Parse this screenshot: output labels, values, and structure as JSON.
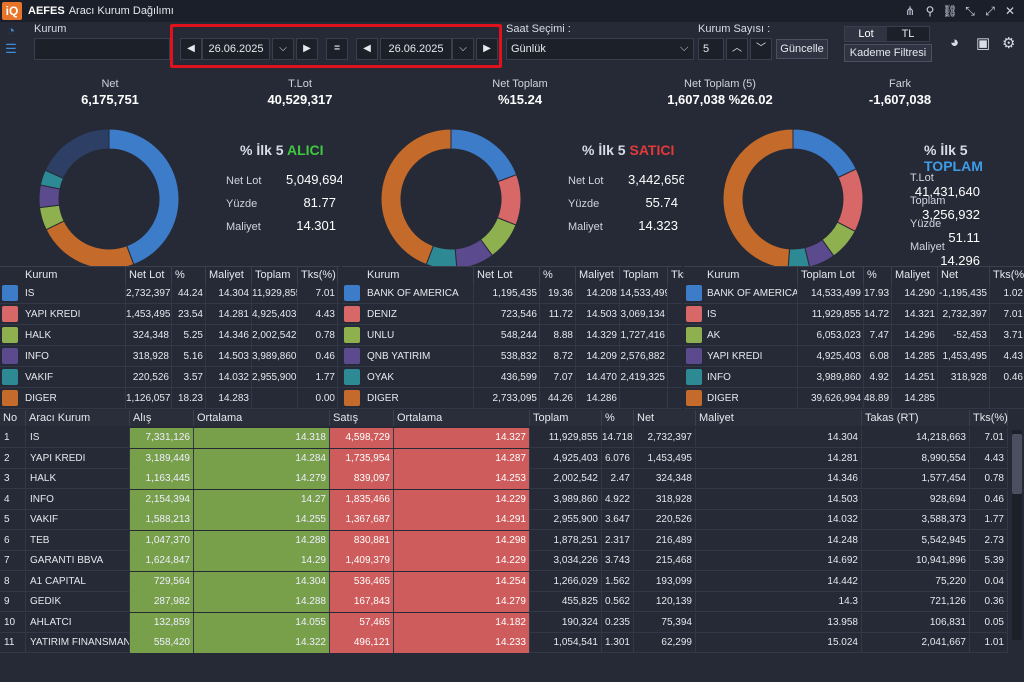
{
  "title": {
    "symbol": "AEFES",
    "text": "Aracı Kurum Dağılımı"
  },
  "window_icons": [
    "share-icon",
    "pin-icon",
    "chain-icon",
    "compress-icon",
    "expand-icon",
    "close-icon"
  ],
  "toolbar": {
    "kurum_label": "Kurum",
    "kurum_value": "",
    "date1": "26.06.2025",
    "date2": "26.06.2025",
    "equals": "=",
    "saat_label": "Saat Seçimi :",
    "saat_value": "Günlük",
    "kurum_sayisi_label": "Kurum Sayısı :",
    "kurum_sayisi_value": "5",
    "guncelle": "Güncelle",
    "lot": "Lot",
    "tl": "TL",
    "kademe": "Kademe Filtresi"
  },
  "stats": [
    {
      "label": "Net",
      "value": "6,175,751"
    },
    {
      "label": "T.Lot",
      "value": "40,529,317"
    },
    {
      "label": "Net Toplam",
      "value": "%15.24"
    },
    {
      "label": "Net Toplam  (5)",
      "value": "1,607,038  %26.02"
    },
    {
      "label": "Fark",
      "value": "-1,607,038"
    }
  ],
  "panels": [
    {
      "prefix": "% İlk 5",
      "word": "ALICI",
      "word_color": "#3fc93f",
      "rows": [
        {
          "k": "Net Lot",
          "v": "5,049,694"
        },
        {
          "k": "Yüzde",
          "v": "81.77"
        },
        {
          "k": "Maliyet",
          "v": "14.301"
        }
      ],
      "slices": [
        {
          "v": 44.24,
          "c": "#3d7cc9"
        },
        {
          "v": 23.54,
          "c": "#c46a2a"
        },
        {
          "v": 5.25,
          "c": "#8fb04e"
        },
        {
          "v": 5.16,
          "c": "#5b4a8e"
        },
        {
          "v": 3.57,
          "c": "#2d8a94"
        },
        {
          "v": 18.23,
          "c": "#2e3f66"
        }
      ]
    },
    {
      "prefix": "% İlk 5",
      "word": "SATICI",
      "word_color": "#e23a3a",
      "rows": [
        {
          "k": "Net Lot",
          "v": "3,442,656"
        },
        {
          "k": "Yüzde",
          "v": "55.74"
        },
        {
          "k": "Maliyet",
          "v": "14.323"
        }
      ],
      "slices": [
        {
          "v": 19.36,
          "c": "#3d7cc9"
        },
        {
          "v": 11.72,
          "c": "#d86868"
        },
        {
          "v": 8.88,
          "c": "#8fb04e"
        },
        {
          "v": 8.72,
          "c": "#5b4a8e"
        },
        {
          "v": 7.07,
          "c": "#2d8a94"
        },
        {
          "v": 44.26,
          "c": "#c46a2a"
        }
      ]
    },
    {
      "prefix": "% İlk 5",
      "word": "TOPLAM",
      "word_color": "#3d9de8",
      "rows": [
        {
          "k": "T.Lot",
          "v": "41,431,640"
        },
        {
          "k": "Toplam",
          "v": "3,256,932"
        },
        {
          "k": "Yüzde",
          "v": "51.11"
        },
        {
          "k": "Maliyet",
          "v": "14.296"
        }
      ],
      "slices": [
        {
          "v": 17.93,
          "c": "#3d7cc9"
        },
        {
          "v": 14.72,
          "c": "#d86868"
        },
        {
          "v": 7.47,
          "c": "#8fb04e"
        },
        {
          "v": 6.08,
          "c": "#5b4a8e"
        },
        {
          "v": 4.92,
          "c": "#2d8a94"
        },
        {
          "v": 48.89,
          "c": "#c46a2a"
        }
      ]
    }
  ],
  "buy_table": {
    "headers": [
      "Kurum",
      "Net Lot",
      "%",
      "Maliyet",
      "Toplam",
      "Tks(%)"
    ],
    "rows": [
      {
        "c": "#3d7cc9",
        "cells": [
          "IS",
          "2,732,397",
          "44.24",
          "14.304",
          "11,929,855",
          "7.01"
        ]
      },
      {
        "c": "#d86868",
        "cells": [
          "YAPI KREDI",
          "1,453,495",
          "23.54",
          "14.281",
          "4,925,403",
          "4.43"
        ]
      },
      {
        "c": "#8fb04e",
        "cells": [
          "HALK",
          "324,348",
          "5.25",
          "14.346",
          "2,002,542",
          "0.78"
        ]
      },
      {
        "c": "#5b4a8e",
        "cells": [
          "INFO",
          "318,928",
          "5.16",
          "14.503",
          "3,989,860",
          "0.46"
        ]
      },
      {
        "c": "#2d8a94",
        "cells": [
          "VAKIF",
          "220,526",
          "3.57",
          "14.032",
          "2,955,900",
          "1.77"
        ]
      },
      {
        "c": "#c46a2a",
        "cells": [
          "DIGER",
          "1,126,057",
          "18.23",
          "14.283",
          "",
          "0.00"
        ]
      }
    ]
  },
  "sell_table": {
    "headers": [
      "Kurum",
      "Net Lot",
      "%",
      "Maliyet",
      "Toplam",
      "Tks(%)"
    ],
    "rows": [
      {
        "c": "#3d7cc9",
        "cells": [
          "BANK OF AMERICA",
          "1,195,435",
          "19.36",
          "14.208",
          "14,533,499",
          "1.02"
        ]
      },
      {
        "c": "#d86868",
        "cells": [
          "DENIZ",
          "723,546",
          "11.72",
          "14.503",
          "3,069,134",
          "1.52"
        ]
      },
      {
        "c": "#8fb04e",
        "cells": [
          "UNLU",
          "548,244",
          "8.88",
          "14.329",
          "1,727,416",
          "-0.01"
        ]
      },
      {
        "c": "#5b4a8e",
        "cells": [
          "QNB YATIRIM",
          "538,832",
          "8.72",
          "14.209",
          "2,576,882",
          "1.84"
        ]
      },
      {
        "c": "#2d8a94",
        "cells": [
          "OYAK",
          "436,599",
          "7.07",
          "14.470",
          "2,419,325",
          "0.42"
        ]
      },
      {
        "c": "#c46a2a",
        "cells": [
          "DIGER",
          "2,733,095",
          "44.26",
          "14.286",
          "",
          "0.00"
        ]
      }
    ]
  },
  "total_table": {
    "headers": [
      "Kurum",
      "Toplam Lot",
      "%",
      "Maliyet",
      "Net",
      "Tks(%)"
    ],
    "rows": [
      {
        "c": "#3d7cc9",
        "cells": [
          "BANK OF AMERICA",
          "14,533,499",
          "17.93",
          "14.290",
          "-1,195,435",
          "1.02"
        ]
      },
      {
        "c": "#d86868",
        "cells": [
          "IS",
          "11,929,855",
          "14.72",
          "14.321",
          "2,732,397",
          "7.01"
        ]
      },
      {
        "c": "#8fb04e",
        "cells": [
          "AK",
          "6,053,023",
          "7.47",
          "14.296",
          "-52,453",
          "3.71"
        ]
      },
      {
        "c": "#5b4a8e",
        "cells": [
          "YAPI KREDI",
          "4,925,403",
          "6.08",
          "14.285",
          "1,453,495",
          "4.43"
        ]
      },
      {
        "c": "#2d8a94",
        "cells": [
          "INFO",
          "3,989,860",
          "4.92",
          "14.251",
          "318,928",
          "0.46"
        ]
      },
      {
        "c": "#c46a2a",
        "cells": [
          "DIGER",
          "39,626,994",
          "48.89",
          "14.285",
          "",
          ""
        ]
      }
    ]
  },
  "main_grid": {
    "headers": [
      "No",
      "Aracı Kurum",
      "Alış",
      "Ortalama",
      "Satış",
      "Ortalama",
      "Toplam",
      "%",
      "Net",
      "Maliyet",
      "Takas (RT)",
      "Tks(%)"
    ],
    "rows": [
      [
        "1",
        "IS",
        "7,331,126",
        "14.318",
        "4,598,729",
        "14.327",
        "11,929,855",
        "14.718",
        "2,732,397",
        "14.304",
        "14,218,663",
        "7.01"
      ],
      [
        "2",
        "YAPI KREDI",
        "3,189,449",
        "14.284",
        "1,735,954",
        "14.287",
        "4,925,403",
        "6.076",
        "1,453,495",
        "14.281",
        "8,990,554",
        "4.43"
      ],
      [
        "3",
        "HALK",
        "1,163,445",
        "14.279",
        "839,097",
        "14.253",
        "2,002,542",
        "2.47",
        "324,348",
        "14.346",
        "1,577,454",
        "0.78"
      ],
      [
        "4",
        "INFO",
        "2,154,394",
        "14.27",
        "1,835,466",
        "14.229",
        "3,989,860",
        "4.922",
        "318,928",
        "14.503",
        "928,694",
        "0.46"
      ],
      [
        "5",
        "VAKIF",
        "1,588,213",
        "14.255",
        "1,367,687",
        "14.291",
        "2,955,900",
        "3.647",
        "220,526",
        "14.032",
        "3,588,373",
        "1.77"
      ],
      [
        "6",
        "TEB",
        "1,047,370",
        "14.288",
        "830,881",
        "14.298",
        "1,878,251",
        "2.317",
        "216,489",
        "14.248",
        "5,542,945",
        "2.73"
      ],
      [
        "7",
        "GARANTI BBVA",
        "1,624,847",
        "14.29",
        "1,409,379",
        "14.229",
        "3,034,226",
        "3.743",
        "215,468",
        "14.692",
        "10,941,896",
        "5.39"
      ],
      [
        "8",
        "A1 CAPITAL",
        "729,564",
        "14.304",
        "536,465",
        "14.254",
        "1,266,029",
        "1.562",
        "193,099",
        "14.442",
        "75,220",
        "0.04"
      ],
      [
        "9",
        "GEDIK",
        "287,982",
        "14.288",
        "167,843",
        "14.279",
        "455,825",
        "0.562",
        "120,139",
        "14.3",
        "721,126",
        "0.36"
      ],
      [
        "10",
        "AHLATCI",
        "132,859",
        "14.055",
        "57,465",
        "14.182",
        "190,324",
        "0.235",
        "75,394",
        "13.958",
        "106,831",
        "0.05"
      ],
      [
        "11",
        "YATIRIM FINANSMAN",
        "558,420",
        "14.322",
        "496,121",
        "14.233",
        "1,054,541",
        "1.301",
        "62,299",
        "15.024",
        "2,041,667",
        "1.01"
      ]
    ]
  }
}
